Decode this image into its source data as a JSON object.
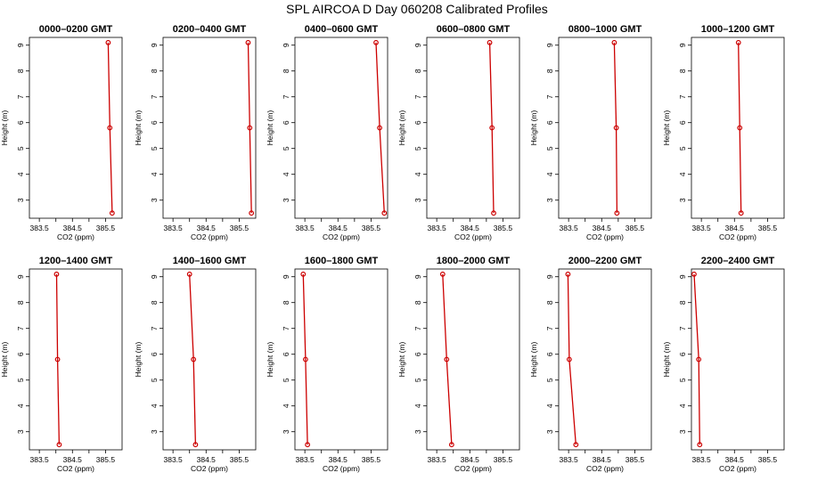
{
  "title": "SPL AIRCOA D  Day 060208  Calibrated Profiles",
  "chart_data": {
    "type": "line",
    "title": "SPL AIRCOA D  Day 060208  Calibrated Profiles",
    "xlabel": "CO2 (ppm)",
    "ylabel": "Height (m)",
    "xlim": [
      383.2,
      386.0
    ],
    "ylim": [
      2.3,
      9.3
    ],
    "x_ticks": [
      383.5,
      384,
      384.5,
      385,
      385.5
    ],
    "x_tick_labels": [
      "383.5",
      "",
      "384.5",
      "",
      "385.5"
    ],
    "y_ticks": [
      3,
      4,
      5,
      6,
      7,
      8,
      9
    ],
    "y_tick_labels": [
      "3",
      "4",
      "5",
      "6",
      "7",
      "8",
      "9"
    ],
    "heights": [
      9.1,
      5.8,
      2.5
    ],
    "line_color": "#cc0000",
    "marker": "open-circle",
    "grid": false,
    "panels": [
      {
        "title": "0000–0200 GMT",
        "co2": [
          385.58,
          385.63,
          385.7
        ]
      },
      {
        "title": "0200–0400 GMT",
        "co2": [
          385.77,
          385.82,
          385.87
        ]
      },
      {
        "title": "0400–0600 GMT",
        "co2": [
          385.65,
          385.76,
          385.9
        ]
      },
      {
        "title": "0600–0800 GMT",
        "co2": [
          385.1,
          385.17,
          385.22
        ]
      },
      {
        "title": "0800–1000 GMT",
        "co2": [
          384.88,
          384.94,
          384.96
        ]
      },
      {
        "title": "1000–1200 GMT",
        "co2": [
          384.62,
          384.66,
          384.7
        ]
      },
      {
        "title": "1200–1400 GMT",
        "co2": [
          384.02,
          384.05,
          384.1
        ]
      },
      {
        "title": "1400–1600 GMT",
        "co2": [
          384.0,
          384.12,
          384.18
        ]
      },
      {
        "title": "1600–1800 GMT",
        "co2": [
          383.45,
          383.52,
          383.58
        ]
      },
      {
        "title": "1800–2000 GMT",
        "co2": [
          383.68,
          383.8,
          383.95
        ]
      },
      {
        "title": "2000–2200 GMT",
        "co2": [
          383.48,
          383.52,
          383.72
        ]
      },
      {
        "title": "2200–2400 GMT",
        "co2": [
          383.28,
          383.42,
          383.45
        ]
      }
    ]
  }
}
